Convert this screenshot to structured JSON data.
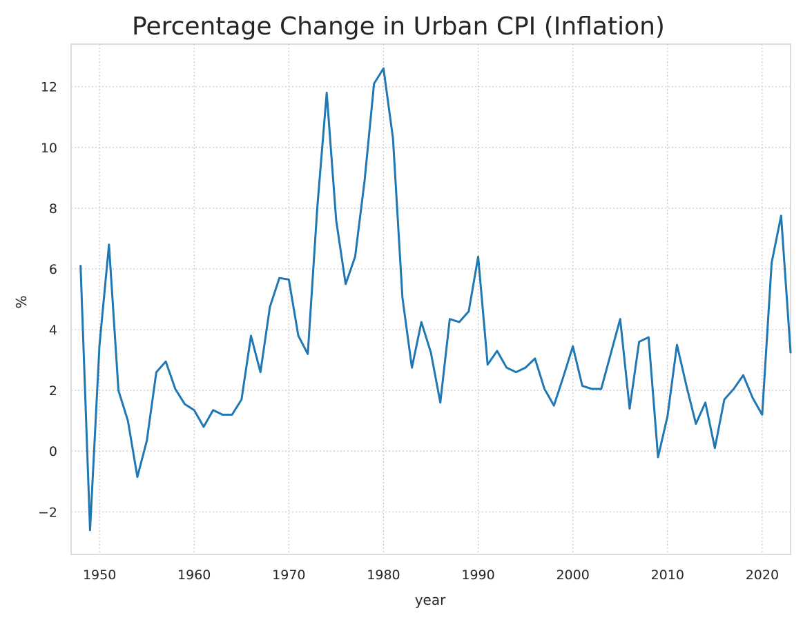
{
  "chart_data": {
    "type": "line",
    "title": "Percentage Change in Urban CPI (Inflation)",
    "xlabel": "year",
    "ylabel": "%",
    "xlim": [
      1947,
      2023
    ],
    "ylim": [
      -3.4,
      13.4
    ],
    "xticks": [
      1950,
      1960,
      1970,
      1980,
      1990,
      2000,
      2010,
      2020
    ],
    "yticks": [
      -2,
      0,
      2,
      4,
      6,
      8,
      10,
      12
    ],
    "ytick_labels": [
      "−2",
      "0",
      "2",
      "4",
      "6",
      "8",
      "10",
      "12"
    ],
    "grid": true,
    "line_color": "#1f77b4",
    "x": [
      1948,
      1949,
      1950,
      1951,
      1952,
      1953,
      1954,
      1955,
      1956,
      1957,
      1958,
      1959,
      1960,
      1961,
      1962,
      1963,
      1964,
      1965,
      1966,
      1967,
      1968,
      1969,
      1970,
      1971,
      1972,
      1973,
      1974,
      1975,
      1976,
      1977,
      1978,
      1979,
      1980,
      1981,
      1982,
      1983,
      1984,
      1985,
      1986,
      1987,
      1988,
      1989,
      1990,
      1991,
      1992,
      1993,
      1994,
      1995,
      1996,
      1997,
      1998,
      1999,
      2000,
      2001,
      2002,
      2003,
      2004,
      2005,
      2006,
      2007,
      2008,
      2009,
      2010,
      2011,
      2012,
      2013,
      2014,
      2015,
      2016,
      2017,
      2018,
      2019,
      2020,
      2021,
      2022,
      2023
    ],
    "values": [
      6.1,
      -2.6,
      3.5,
      6.8,
      2.0,
      1.0,
      -0.85,
      0.35,
      2.6,
      2.95,
      2.05,
      1.55,
      1.35,
      0.8,
      1.35,
      1.2,
      1.2,
      1.7,
      3.8,
      2.6,
      4.75,
      5.7,
      5.65,
      3.8,
      3.2,
      8.0,
      11.8,
      7.6,
      5.5,
      6.4,
      8.9,
      12.1,
      12.6,
      10.3,
      5.05,
      2.75,
      4.25,
      3.25,
      1.6,
      4.35,
      4.25,
      4.6,
      6.4,
      2.85,
      3.3,
      2.75,
      2.6,
      2.75,
      3.05,
      2.05,
      1.5,
      2.45,
      3.45,
      2.15,
      2.05,
      2.05,
      3.2,
      4.35,
      1.4,
      3.6,
      3.75,
      -0.2,
      1.15,
      3.5,
      2.15,
      0.9,
      1.6,
      0.1,
      1.7,
      2.05,
      2.5,
      1.75,
      1.2,
      6.2,
      7.75,
      3.25
    ]
  }
}
